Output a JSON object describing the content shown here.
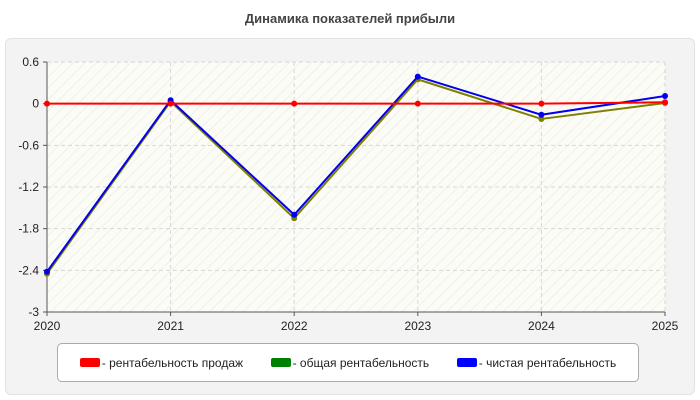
{
  "chart_data": {
    "type": "line",
    "title": "Динамика показателей прибыли",
    "xlabel": "",
    "ylabel": "",
    "x": [
      "2020",
      "2021",
      "2022",
      "2023",
      "2024",
      "2025"
    ],
    "ylim": [
      -3,
      0.6
    ],
    "yticks": [
      "0.6",
      "0",
      "-0.6",
      "-1.2",
      "-1.8",
      "-2.4",
      "-3"
    ],
    "grid": true,
    "legend_position": "bottom",
    "series": [
      {
        "name": "- рентабельность продаж",
        "color": "#ff0000",
        "values": [
          0,
          0,
          0,
          0,
          0,
          0.02
        ]
      },
      {
        "name": "- общая рентабельность",
        "color": "#808000",
        "values": [
          -2.45,
          0.03,
          -1.65,
          0.35,
          -0.22,
          0.01
        ]
      },
      {
        "name": "- чистая рентабельность",
        "color": "#0000ee",
        "values": [
          -2.42,
          0.05,
          -1.6,
          0.39,
          -0.16,
          0.11
        ]
      }
    ],
    "legend_swatches": [
      "#ff0000",
      "#008000",
      "#0000ff"
    ]
  }
}
